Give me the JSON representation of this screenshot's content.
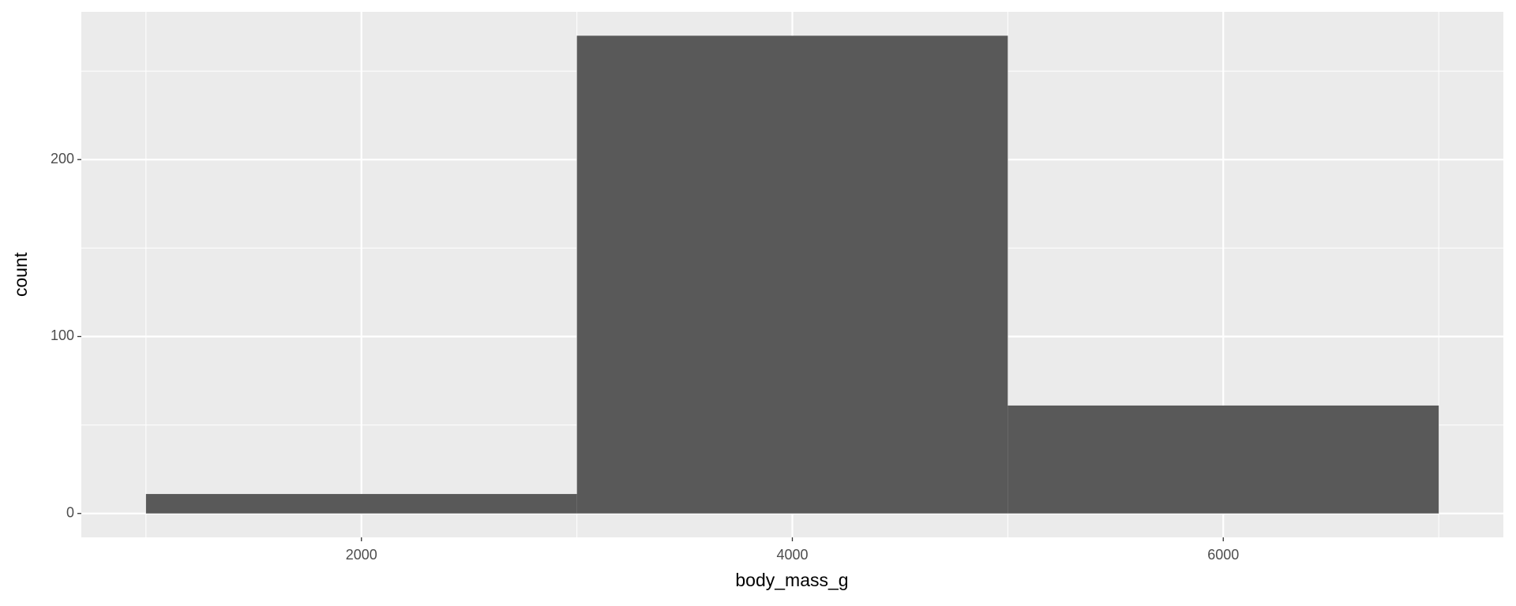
{
  "chart_data": {
    "type": "histogram",
    "x_label": "body_mass_g",
    "y_label": "count",
    "bins": [
      1000,
      3000,
      5000,
      7000
    ],
    "counts": [
      11,
      270,
      61
    ],
    "color": "#595959",
    "xlim": [
      700,
      7300
    ],
    "ylim": [
      -13.5,
      283.5
    ],
    "xticks": [
      2000,
      4000,
      6000
    ],
    "yticks": [
      0,
      100,
      200
    ],
    "x_minor_grid": [
      1000,
      3000,
      5000,
      7000
    ],
    "y_minor_grid": [
      50,
      150,
      250
    ],
    "grid": true,
    "panel_color": "#ebebeb"
  }
}
